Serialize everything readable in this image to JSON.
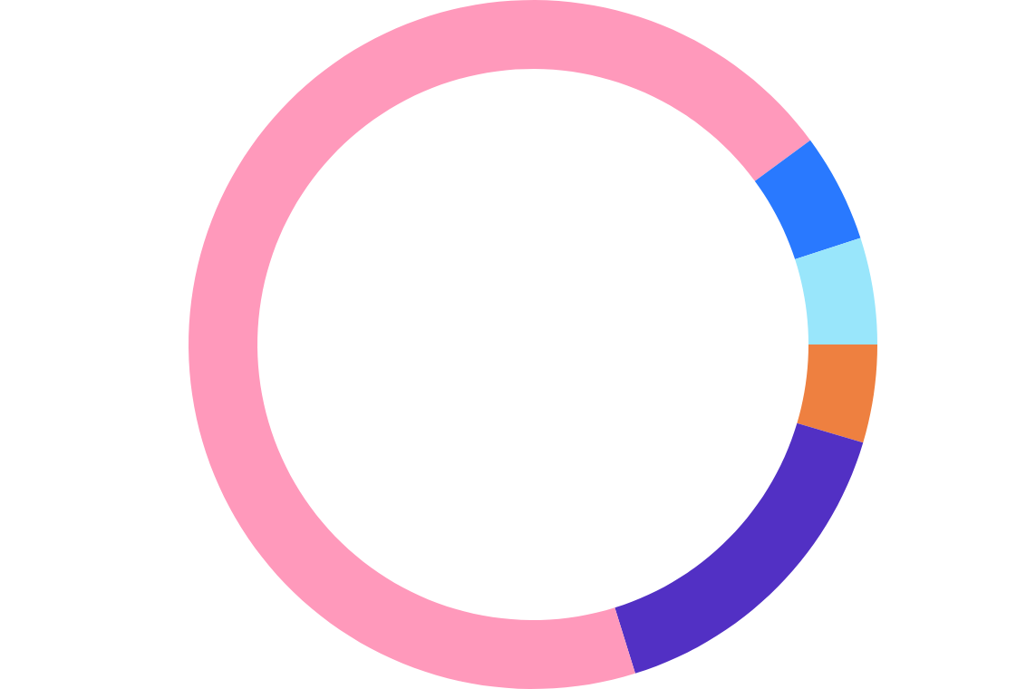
{
  "chart_data": {
    "type": "donut",
    "categories": [
      null,
      null,
      null,
      null,
      null
    ],
    "values": [
      4.6,
      15.6,
      69.7,
      5.1,
      5.0
    ],
    "colors": [
      "#ee8040",
      "#5230c4",
      "#ff99bb",
      "#2979ff",
      "#99e6fb"
    ]
  }
}
